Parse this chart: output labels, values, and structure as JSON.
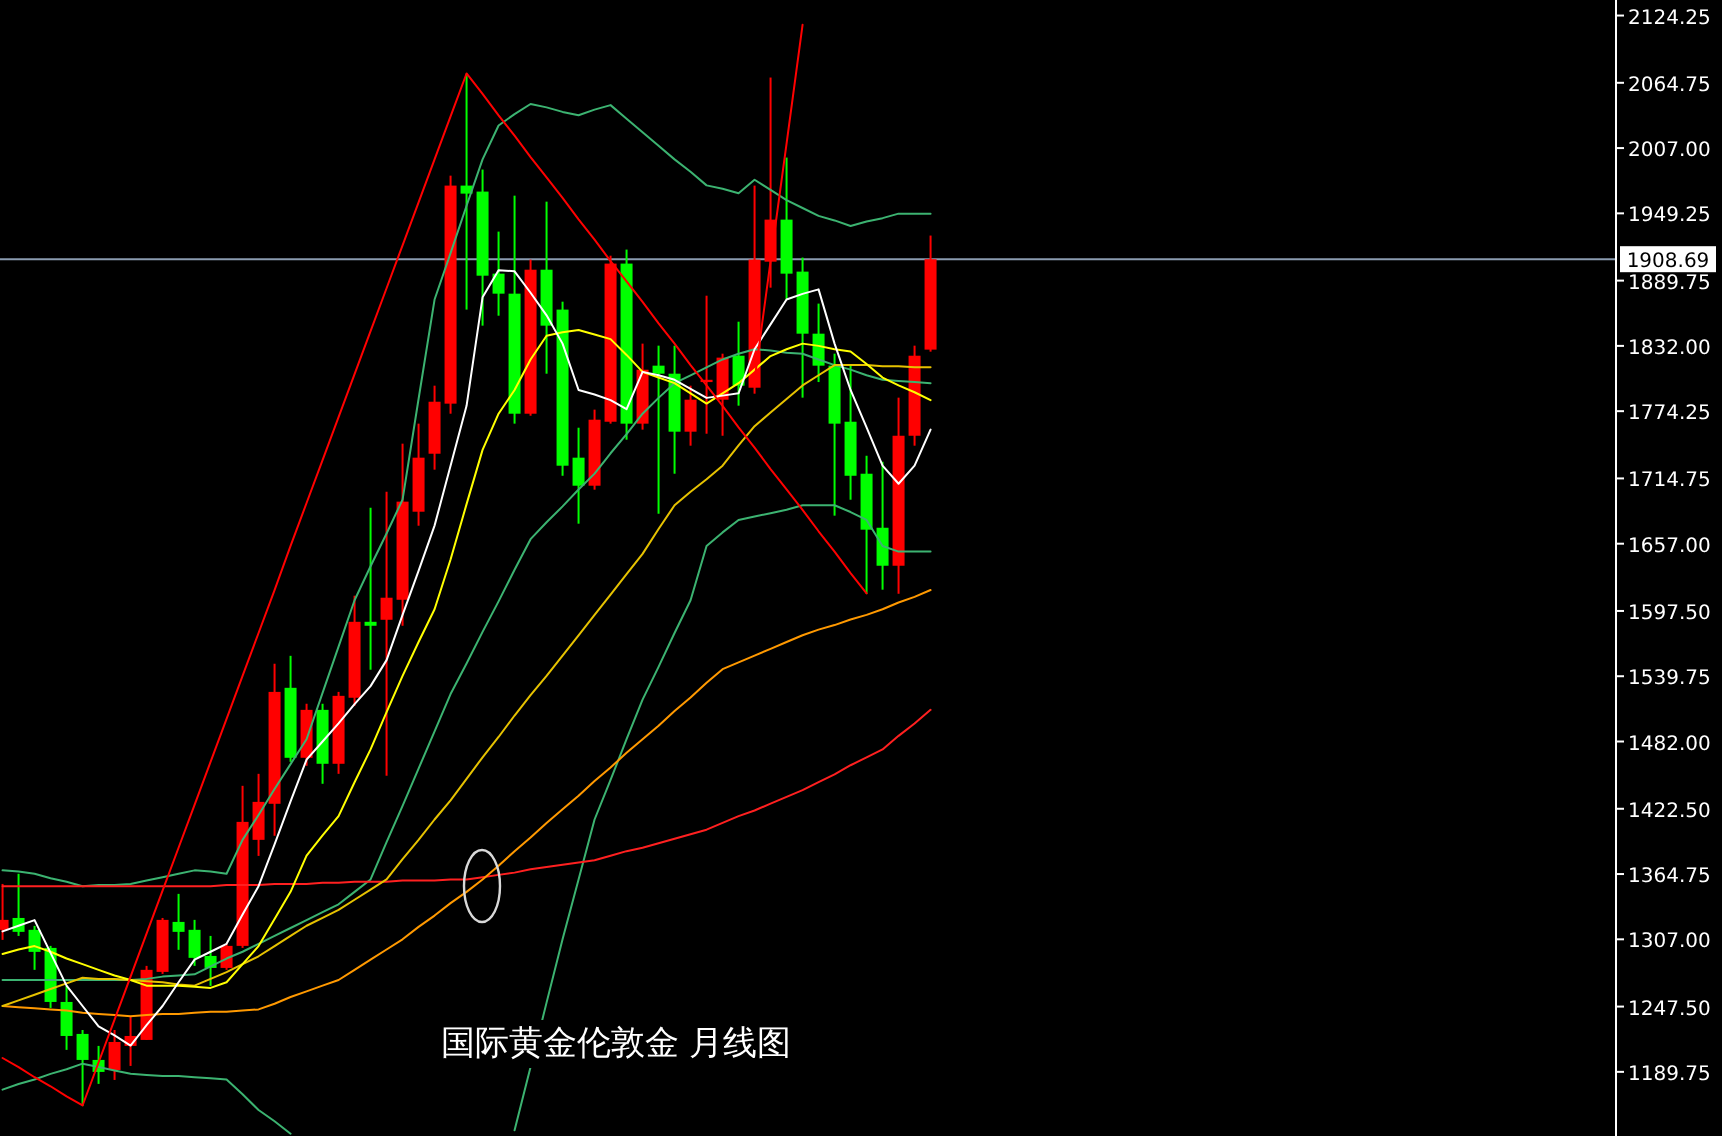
{
  "chart_data": {
    "type": "candlestick",
    "categories": [
      null,
      null,
      null,
      null,
      null,
      null,
      null,
      null,
      null,
      null,
      null,
      null,
      null,
      null,
      null,
      null,
      null,
      null,
      null,
      null,
      null,
      null,
      null,
      null,
      null,
      null,
      null,
      null,
      null,
      null,
      null,
      null,
      null,
      null,
      null,
      null,
      null,
      null,
      null,
      null,
      null,
      null,
      null,
      null,
      null,
      null,
      null,
      null,
      null,
      null,
      null,
      null,
      null,
      null,
      null,
      null,
      null,
      null,
      null,
      null,
      null,
      null,
      null,
      null,
      null,
      null,
      null,
      null,
      null,
      null,
      null,
      null,
      null,
      null,
      null,
      null,
      null,
      null,
      null,
      null,
      null,
      null,
      null,
      null,
      null,
      null,
      null,
      null,
      null,
      null,
      null,
      null,
      null,
      null,
      null,
      null,
      null,
      null,
      null,
      null,
      null
    ],
    "ohlc": [
      [
        1315.4,
        1356,
        1306.5,
        1324.2
      ],
      [
        1325.9,
        1365,
        1310,
        1313.6
      ],
      [
        1315.4,
        1318.9,
        1280,
        1295.9
      ],
      [
        1299.4,
        1301.2,
        1246.3,
        1251.6
      ],
      [
        1251.6,
        1265.8,
        1209.2,
        1221.5
      ],
      [
        1223.3,
        1226.8,
        1159.6,
        1200.3
      ],
      [
        1200.3,
        1212.7,
        1179.1,
        1189.7
      ],
      [
        1191.4,
        1226.8,
        1182.6,
        1216.2
      ],
      [
        1212.7,
        1239.2,
        1195,
        1221.5
      ],
      [
        1218,
        1283.5,
        1218,
        1280
      ],
      [
        1278.2,
        1325.9,
        1276.4,
        1324.2
      ],
      [
        1322.4,
        1347.2,
        1297.7,
        1313.6
      ],
      [
        1315.4,
        1324.2,
        1283.5,
        1290.6
      ],
      [
        1292.3,
        1310,
        1265.8,
        1281.7
      ],
      [
        1281.7,
        1303,
        1280,
        1301.2
      ],
      [
        1301.2,
        1442.8,
        1299.4,
        1410.9
      ],
      [
        1395,
        1453.4,
        1380.8,
        1428.6
      ],
      [
        1426.9,
        1550.8,
        1398.6,
        1525.9
      ],
      [
        1529.5,
        1557.8,
        1464,
        1467.6
      ],
      [
        1467.6,
        1515.4,
        1460.5,
        1510
      ],
      [
        1510,
        1515.4,
        1444.6,
        1462.3
      ],
      [
        1462.3,
        1525.9,
        1453.4,
        1522.4
      ],
      [
        1520.7,
        1611,
        1513.6,
        1587.9
      ],
      [
        1587.9,
        1688.8,
        1545.5,
        1584.4
      ],
      [
        1589.7,
        1703,
        1451.6,
        1609.2
      ],
      [
        1607.4,
        1745.5,
        1584.4,
        1694.2
      ],
      [
        1685.3,
        1763.2,
        1672.9,
        1733.1
      ],
      [
        1736.6,
        1796.8,
        1722.5,
        1782.6
      ],
      [
        1780.9,
        1982.6,
        1772,
        1973.8
      ],
      [
        1973.8,
        2072.9,
        1864.1,
        1966.7
      ],
      [
        1968.5,
        1988,
        1849.9,
        1894.1
      ],
      [
        1895.9,
        1933.1,
        1858.7,
        1878.2
      ],
      [
        1878.2,
        1964.9,
        1763.2,
        1772
      ],
      [
        1772,
        1908.3,
        1770.2,
        1899.4
      ],
      [
        1899.4,
        1959.6,
        1807.4,
        1849.9
      ],
      [
        1864.1,
        1871.1,
        1717.1,
        1726
      ],
      [
        1733.1,
        1759.6,
        1674.7,
        1708.3
      ],
      [
        1708.3,
        1775.6,
        1704.8,
        1766.7
      ],
      [
        1764.9,
        1911.8,
        1763.2,
        1904.8
      ],
      [
        1904.8,
        1917.2,
        1749,
        1763.2
      ],
      [
        1763.2,
        1834,
        1757.9,
        1810.9
      ],
      [
        1814.5,
        1832.2,
        1683.5,
        1807.4
      ],
      [
        1807.4,
        1832.2,
        1718.9,
        1756.1
      ],
      [
        1756.1,
        1796.8,
        1743.7,
        1784.4
      ],
      [
        1800,
        1876.4,
        1754.3,
        1802
      ],
      [
        1784.4,
        1825.1,
        1752.5,
        1821.6
      ],
      [
        1823.3,
        1853.4,
        1779.1,
        1796.8
      ],
      [
        1795,
        1973.8,
        1789.7,
        1908.3
      ],
      [
        1906.5,
        2069.4,
        1883.5,
        1943.7
      ],
      [
        1943.7,
        1998.6,
        1872.9,
        1895.9
      ],
      [
        1897.7,
        1910.1,
        1786.2,
        1842.8
      ],
      [
        1842.8,
        1869.4,
        1800,
        1814.5
      ],
      [
        1814.5,
        1825.1,
        1681.8,
        1763.2
      ],
      [
        1764.9,
        1814.5,
        1695.9,
        1717.1
      ],
      [
        1718.9,
        1734.8,
        1612.7,
        1669.4
      ],
      [
        1671.1,
        1729.5,
        1616.3,
        1637.5
      ],
      [
        1637.5,
        1786.2,
        1612.7,
        1752.5
      ],
      [
        1752.5,
        1832.2,
        1743.7,
        1823.3
      ],
      [
        1828.7,
        1929.6,
        1826.9,
        1908.69
      ],
      null,
      null,
      null,
      null,
      null,
      null,
      null,
      null,
      null,
      null,
      null,
      null,
      null,
      null,
      null,
      null,
      null,
      null,
      null,
      null,
      null,
      null,
      null,
      null,
      null,
      null,
      null,
      null,
      null,
      null,
      null,
      null,
      null,
      null,
      null,
      null,
      null,
      null,
      null,
      null,
      null,
      null
    ],
    "colors": [
      "#ff0000",
      "#00ff00",
      "#00ff00",
      "#00ff00",
      "#00ff00",
      "#00ff00",
      "#00ff00",
      "#ff0000",
      "#ff0000",
      "#ff0000",
      "#ff0000",
      "#00ff00",
      "#00ff00",
      "#00ff00",
      "#ff0000",
      "#ff0000",
      "#ff0000",
      "#ff0000",
      "#00ff00",
      "#ff0000",
      "#00ff00",
      "#ff0000",
      "#ff0000",
      "#00ff00",
      "#ff0000",
      "#ff0000",
      "#ff0000",
      "#ff0000",
      "#ff0000",
      "#00ff00",
      "#00ff00",
      "#00ff00",
      "#00ff00",
      "#ff0000",
      "#00ff00",
      "#00ff00",
      "#00ff00",
      "#ff0000",
      "#ff0000",
      "#00ff00",
      "#ff0000",
      "#00ff00",
      "#00ff00",
      "#ff0000",
      "#ff0000",
      "#ff0000",
      "#00ff00",
      "#ff0000",
      "#ff0000",
      "#00ff00",
      "#00ff00",
      "#00ff00",
      "#00ff00",
      "#00ff00",
      "#00ff00",
      "#00ff00",
      "#ff0000",
      "#ff0000",
      "#ff0000",
      null,
      null,
      null,
      null,
      null,
      null,
      null,
      null,
      null,
      null,
      null,
      null,
      null,
      null,
      null,
      null,
      null,
      null,
      null,
      null,
      null,
      null,
      null,
      null,
      null,
      null,
      null,
      null,
      null,
      null,
      null,
      null,
      null,
      null,
      null,
      null,
      null,
      null,
      null,
      null,
      null,
      null
    ],
    "series": [
      {
        "type": "line",
        "color": "#3cb371",
        "values": [
          1368,
          1367,
          1365,
          1361,
          1358,
          1354,
          1355,
          1355,
          1356,
          1359,
          1362,
          1365,
          1368,
          1367,
          1365,
          1395,
          1417,
          1440,
          1462,
          1484,
          1525,
          1566,
          1607,
          1637,
          1666,
          1696,
          1785,
          1873,
          1914,
          1956,
          1997,
          2027,
          2037,
          2046,
          2043,
          2039,
          2036,
          2041,
          2045,
          2033,
          2021,
          2009,
          1997,
          1986,
          1974,
          1971,
          1967,
          1979,
          1970,
          1961,
          1954,
          1947,
          1943,
          1938,
          1942,
          1945,
          1949,
          1949,
          1949,
          null,
          null,
          null,
          null,
          null,
          null,
          null,
          null,
          null,
          null,
          null,
          null,
          null,
          null,
          null,
          null,
          null,
          null,
          null,
          null,
          null,
          null,
          null,
          null,
          null,
          null,
          null,
          null,
          null,
          null,
          null,
          null,
          null,
          null,
          null,
          null,
          null,
          null,
          null,
          null,
          null,
          null
        ]
      },
      {
        "type": "line",
        "color": "#3cb371",
        "values": [
          1174,
          1179,
          1183,
          1188,
          1192,
          1197,
          1194,
          1191,
          1188,
          1187,
          1186,
          1186,
          1185,
          1184,
          1183,
          1170,
          1156,
          1146,
          1135,
          null,
          null,
          null,
          null,
          null,
          null,
          null,
          null,
          null,
          null,
          null,
          null,
          null,
          1138,
          1194,
          1251,
          1307,
          1360,
          1413,
          1448,
          1484,
          1519,
          1548,
          1578,
          1607,
          1655,
          1667,
          1678,
          1681,
          1684,
          1687,
          1691,
          1691,
          1691,
          1685,
          1678,
          1655,
          1650,
          1650,
          1650,
          null,
          null,
          null,
          null,
          null,
          null,
          null,
          null,
          null,
          null,
          null,
          null,
          null,
          null,
          null,
          null,
          null,
          null,
          null,
          null,
          null,
          null,
          null,
          null,
          null,
          null,
          null,
          null,
          null,
          null,
          null,
          null,
          null,
          null,
          null,
          null,
          null,
          null,
          null,
          null,
          null,
          null
        ]
      },
      {
        "type": "line",
        "color": "#3cb371",
        "values": [
          1271,
          1271,
          1271,
          1271,
          1271,
          1271,
          1271,
          1271,
          1271,
          1272,
          1274,
          1275,
          1276,
          1283,
          1290,
          1296,
          1303,
          1310,
          1317,
          1324,
          1331,
          1338,
          1349,
          1360,
          1393,
          1425,
          1458,
          1491,
          1524,
          1551,
          1579,
          1606,
          1634,
          1661,
          1676,
          1690,
          1705,
          1719,
          1737,
          1754,
          1772,
          1786,
          1799,
          1806,
          1813,
          1820,
          1825,
          1829,
          1828,
          1826,
          1825,
          1820,
          1815,
          1811,
          1806,
          1802,
          1801,
          1800,
          1799,
          null,
          null,
          null,
          null,
          null,
          null,
          null,
          null,
          null,
          null,
          null,
          null,
          null,
          null,
          null,
          null,
          null,
          null,
          null,
          null,
          null,
          null,
          null,
          null,
          null,
          null,
          null,
          null,
          null,
          null,
          null,
          null,
          null,
          null,
          null,
          null,
          null,
          null,
          null,
          null,
          null,
          null
        ]
      },
      {
        "type": "line",
        "color": "#ff2020",
        "values": [
          1354,
          1354,
          1354,
          1354,
          1354,
          1354,
          1354,
          1354,
          1354,
          1354,
          1354,
          1354,
          1354,
          1354,
          1355,
          1355,
          1355,
          1356,
          1356,
          1356,
          1357,
          1357,
          1358,
          1358,
          1358,
          1359,
          1359,
          1359,
          1360,
          1360,
          1362,
          1364,
          1366,
          1369,
          1371,
          1373,
          1375,
          1377,
          1381,
          1385,
          1388,
          1392,
          1396,
          1400,
          1404,
          1410,
          1416,
          1421,
          1427,
          1433,
          1439,
          1446,
          1453,
          1461,
          1468,
          1475,
          1487,
          1498,
          1510,
          null,
          null,
          null,
          null,
          null,
          null,
          null,
          null,
          null,
          null,
          null,
          null,
          null,
          null,
          null,
          null,
          null,
          null,
          null,
          null,
          null,
          null,
          null,
          null,
          null,
          null,
          null,
          null,
          null,
          null,
          null,
          null,
          null,
          null,
          null,
          null,
          null,
          null,
          null,
          null,
          null,
          null
        ]
      },
      {
        "type": "line",
        "color": "#ff9900",
        "values": [
          1248,
          1247,
          1246,
          1245,
          1244,
          1242,
          1241,
          1240,
          1239,
          1240,
          1241,
          1241,
          1242,
          1243,
          1243,
          1244,
          1245,
          1250,
          1256,
          1261,
          1266,
          1271,
          1280,
          1289,
          1298,
          1307,
          1318,
          1328,
          1339,
          1349,
          1360,
          1372,
          1385,
          1397,
          1410,
          1422,
          1434,
          1447,
          1459,
          1472,
          1484,
          1496,
          1509,
          1521,
          1534,
          1546,
          1552,
          1558,
          1564,
          1570,
          1576,
          1581,
          1585,
          1590,
          1594,
          1599,
          1605,
          1610,
          1616,
          null,
          null,
          null,
          null,
          null,
          null,
          null,
          null,
          null,
          null,
          null,
          null,
          null,
          null,
          null,
          null,
          null,
          null,
          null,
          null,
          null,
          null,
          null,
          null,
          null,
          null,
          null,
          null,
          null,
          null,
          null,
          null,
          null,
          null,
          null,
          null,
          null,
          null,
          null,
          null,
          null,
          null
        ]
      },
      {
        "type": "line",
        "color": "#e6c200",
        "values": [
          1248,
          1253,
          1258,
          1263,
          1268,
          1273,
          1272,
          1272,
          1271,
          1270,
          1269,
          1267,
          1266,
          1272,
          1278,
          1285,
          1292,
          1301,
          1310,
          1319,
          1326,
          1333,
          1342,
          1351,
          1360,
          1378,
          1395,
          1413,
          1430,
          1449,
          1468,
          1486,
          1505,
          1523,
          1540,
          1558,
          1576,
          1594,
          1612,
          1630,
          1648,
          1670,
          1691,
          1703,
          1714,
          1726,
          1744,
          1761,
          1773,
          1785,
          1797,
          1806,
          1815,
          1815,
          1815,
          1814,
          1814,
          1813,
          1813,
          null,
          null,
          null,
          null,
          null,
          null,
          null,
          null,
          null,
          null,
          null,
          null,
          null,
          null,
          null,
          null,
          null,
          null,
          null,
          null,
          null,
          null,
          null,
          null,
          null,
          null,
          null,
          null,
          null,
          null,
          null,
          null,
          null,
          null,
          null,
          null,
          null,
          null,
          null,
          null,
          null,
          null
        ]
      },
      {
        "type": "line",
        "color": "#ffff00",
        "values": [
          1294,
          1298,
          1301,
          1296,
          1290,
          1285,
          1280,
          1275,
          1271,
          1266,
          1266,
          1266,
          1265,
          1264,
          1269,
          1285,
          1301,
          1325,
          1349,
          1381,
          1399,
          1416,
          1446,
          1475,
          1508,
          1540,
          1570,
          1599,
          1643,
          1692,
          1740,
          1772,
          1793,
          1820,
          1841,
          1844,
          1846,
          1842,
          1838,
          1824,
          1809,
          1804,
          1799,
          1790,
          1781,
          1790,
          1799,
          1811,
          1823,
          1829,
          1834,
          1832,
          1829,
          1827,
          1816,
          1804,
          1797,
          1791,
          1784,
          null,
          null,
          null,
          null,
          null,
          null,
          null,
          null,
          null,
          null,
          null,
          null,
          null,
          null,
          null,
          null,
          null,
          null,
          null,
          null,
          null,
          null,
          null,
          null,
          null,
          null,
          null,
          null,
          null,
          null,
          null,
          null,
          null,
          null,
          null,
          null,
          null,
          null,
          null,
          null,
          null,
          null
        ]
      },
      {
        "type": "line",
        "color": "#ffffff",
        "values": [
          1314,
          1319,
          1324,
          1295,
          1266,
          1248,
          1230,
          1222,
          1213,
          1231,
          1248,
          1269,
          1289,
          1296,
          1303,
          1329,
          1354,
          1391,
          1429,
          1466,
          1482,
          1498,
          1515,
          1531,
          1554,
          1594,
          1633,
          1673,
          1726,
          1779,
          1875,
          1899,
          1898,
          1879,
          1859,
          1834,
          1793,
          1789,
          1784,
          1776,
          1809,
          1806,
          1802,
          1794,
          1786,
          1788,
          1790,
          1829,
          1851,
          1873,
          1878,
          1882,
          1834,
          1793,
          1760,
          1726,
          1710,
          1726,
          1758,
          null,
          null,
          null,
          null,
          null,
          null,
          null,
          null,
          null,
          null,
          null,
          null,
          null,
          null,
          null,
          null,
          null,
          null,
          null,
          null,
          null,
          null,
          null,
          null,
          null,
          null,
          null,
          null,
          null,
          null,
          null,
          null,
          null,
          null,
          null,
          null,
          null,
          null,
          null,
          null,
          null,
          null
        ]
      },
      {
        "type": "line",
        "color": "#ff0000",
        "values": [
          1202,
          1194,
          1185,
          1177,
          1168,
          1160,
          1198,
          1236,
          1274,
          1312,
          1350,
          1388,
          1426,
          1464,
          1502,
          1540,
          1578,
          1616,
          1655,
          1693,
          1731,
          1769,
          1807,
          1845,
          1883,
          1921,
          1959,
          1997,
          2035,
          2073,
          2055,
          2036,
          2018,
          1999,
          1981,
          1963,
          1944,
          1926,
          1907,
          1889,
          1871,
          1852,
          1834,
          1815,
          1797,
          1779,
          1760,
          1742,
          1723,
          1705,
          1687,
          1668,
          1650,
          1631,
          1613,
          null,
          null,
          null,
          null,
          null,
          null,
          null,
          null,
          null,
          null,
          null,
          null,
          null,
          null,
          null,
          null,
          null,
          null,
          null,
          null,
          null,
          null,
          null,
          null,
          null,
          null,
          null,
          null,
          null,
          null,
          null,
          null,
          null,
          null,
          null,
          null,
          null,
          null,
          null,
          null,
          null,
          null,
          null,
          null,
          null,
          null
        ]
      },
      {
        "type": "line",
        "color": "#ff0000",
        "values": [
          null,
          null,
          null,
          null,
          null,
          null,
          null,
          null,
          null,
          null,
          null,
          null,
          null,
          null,
          null,
          null,
          null,
          null,
          null,
          null,
          null,
          null,
          null,
          null,
          null,
          null,
          null,
          null,
          null,
          null,
          null,
          null,
          null,
          null,
          null,
          null,
          null,
          null,
          null,
          null,
          null,
          null,
          null,
          null,
          null,
          null,
          null,
          1802,
          1907,
          2011,
          2116,
          null,
          null,
          null,
          null,
          null,
          null,
          null,
          null,
          null,
          null,
          null,
          null,
          null,
          null,
          null,
          null,
          null,
          null,
          null,
          null,
          null,
          null,
          null,
          null,
          null,
          null,
          null,
          null,
          null,
          null,
          null,
          null,
          null,
          null,
          null,
          null,
          null,
          null,
          null,
          null,
          null,
          null,
          null,
          null,
          null,
          null,
          null,
          null,
          null,
          null
        ]
      }
    ],
    "ylim": [
      1133,
      2138
    ],
    "yticks": [
      2124.25,
      2064.75,
      {
        "value": 2007,
        "label": "2007.00"
      },
      1949.25,
      1889.75,
      {
        "value": 1832,
        "label": "1832.00"
      },
      1774.25,
      1714.75,
      {
        "value": 1657,
        "label": "1657.00"
      },
      {
        "value": 1597.5,
        "label": "1597.50"
      },
      1539.75,
      {
        "value": 1482,
        "label": "1482.00"
      },
      {
        "value": 1422.5,
        "label": "1422.50"
      },
      1364.75,
      {
        "value": 1307,
        "label": "1307.00"
      },
      {
        "value": 1247.5,
        "label": "1247.50"
      },
      1189.75
    ],
    "tick_labels": "y",
    "ref_lines": [
      {
        "axis": "y",
        "value": 1908.69,
        "label": "1908.69",
        "color": "#8a9bb0"
      }
    ],
    "annotations": [
      "国际黄金伦敦金  月线图"
    ]
  }
}
